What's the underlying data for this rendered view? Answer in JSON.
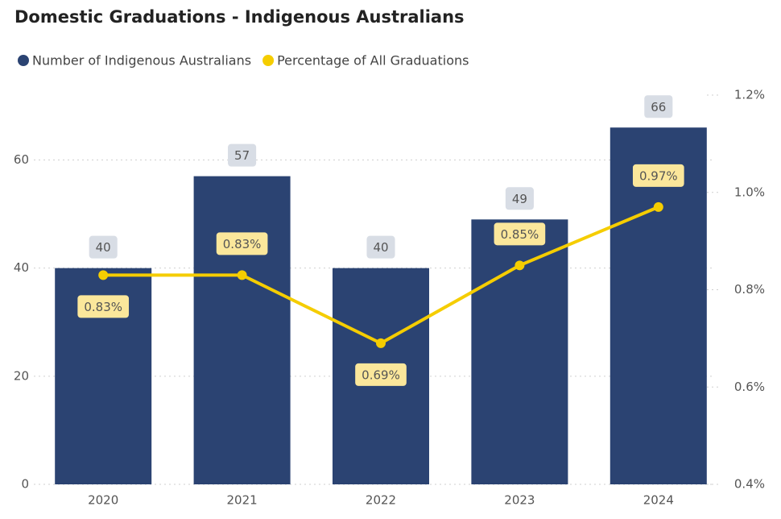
{
  "chart_data": {
    "type": "combo",
    "title": "Domestic Graduations - Indigenous Australians",
    "categories": [
      "2020",
      "2021",
      "2022",
      "2023",
      "2024"
    ],
    "series": [
      {
        "name": "Number of Indigenous Australians",
        "type": "bar",
        "color": "#2b4372",
        "values": [
          40,
          57,
          40,
          49,
          66
        ]
      },
      {
        "name": "Percentage of All Graduations",
        "type": "line",
        "axis": "y2",
        "color": "#f5cd00",
        "values": [
          0.83,
          0.83,
          0.69,
          0.85,
          0.97
        ],
        "value_labels": [
          "0.83%",
          "0.83%",
          "0.69%",
          "0.85%",
          "0.97%"
        ]
      }
    ],
    "ylim": [
      0,
      72
    ],
    "yticks": [
      0,
      20,
      40,
      60
    ],
    "y2lim": [
      0.4,
      1.2
    ],
    "y2ticks": [
      {
        "value": 0.4,
        "label": "0.4%"
      },
      {
        "value": 0.6,
        "label": "0.6%"
      },
      {
        "value": 0.8,
        "label": "0.8%"
      },
      {
        "value": 1.0,
        "label": "1.0%"
      },
      {
        "value": 1.2,
        "label": "1.2%"
      }
    ],
    "grid": true
  }
}
